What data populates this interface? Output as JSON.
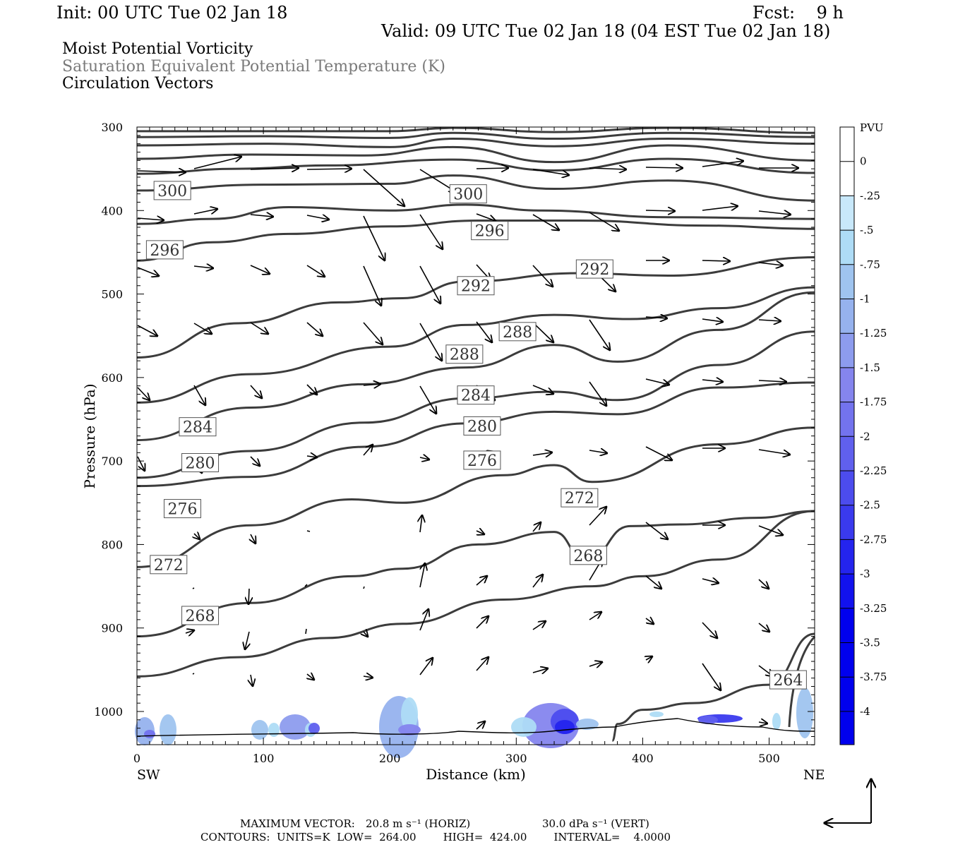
{
  "header": {
    "init": "Init: 00 UTC Tue 02 Jan 18",
    "fcst": "Fcst:    9 h",
    "valid": "Valid: 09 UTC Tue 02 Jan 18 (04 EST Tue 02 Jan 18)"
  },
  "titles": {
    "line1": "Moist Potential Vorticity",
    "line2": "Saturation Equivalent Potential Temperature (K)",
    "line3": "Circulation Vectors"
  },
  "footer": {
    "max_label": "MAXIMUM VECTOR:",
    "max_h": "20.8 m s⁻¹ (HORIZ)",
    "max_v": "30.0 dPa s⁻¹ (VERT)",
    "contours": "CONTOURS:  UNITS=K  LOW=  264.00        HIGH=  424.00        INTERVAL=    4.0000"
  },
  "colors": {
    "contour": "#3c3c3c",
    "vector": "#000000",
    "pv_fill": [
      "#c8e8fa",
      "#aedcf6",
      "#9fc4ef",
      "#96b2ee",
      "#8d9cee",
      "#8585ee",
      "#7373ee",
      "#6060ee",
      "#4c4cee",
      "#3a3aee",
      "#2424ee",
      "#1212ee",
      "#0000ee"
    ]
  },
  "chart_data": {
    "type": "cross-section",
    "xlabel": "Distance (km)",
    "ylabel": "Pressure (hPa)",
    "xlim": [
      0,
      536
    ],
    "ylim": [
      300,
      1040
    ],
    "x_ticks": [
      0,
      100,
      200,
      300,
      400,
      500
    ],
    "y_ticks": [
      300,
      400,
      500,
      600,
      700,
      800,
      900,
      1000
    ],
    "end_labels": {
      "left": "SW",
      "right": "NE"
    },
    "colorbar": {
      "unit": "PVU",
      "levels": [
        "0",
        "-.25",
        "-.5",
        "-.75",
        "-1",
        "-1.25",
        "-1.5",
        "-1.75",
        "-2",
        "-2.25",
        "-2.5",
        "-2.75",
        "-3",
        "-3.25",
        "-3.5",
        "-3.75",
        "-4"
      ]
    },
    "contour_labels": [
      {
        "text": "300",
        "x": 28,
        "p": 376
      },
      {
        "text": "300",
        "x": 262,
        "p": 380
      },
      {
        "text": "296",
        "x": 22,
        "p": 447
      },
      {
        "text": "296",
        "x": 279,
        "p": 424
      },
      {
        "text": "292",
        "x": 268,
        "p": 490
      },
      {
        "text": "292",
        "x": 362,
        "p": 470
      },
      {
        "text": "288",
        "x": 301,
        "p": 545
      },
      {
        "text": "288",
        "x": 259,
        "p": 572
      },
      {
        "text": "284",
        "x": 268,
        "p": 621
      },
      {
        "text": "284",
        "x": 48,
        "p": 659
      },
      {
        "text": "280",
        "x": 273,
        "p": 658
      },
      {
        "text": "280",
        "x": 50,
        "p": 702
      },
      {
        "text": "276",
        "x": 273,
        "p": 699
      },
      {
        "text": "276",
        "x": 36,
        "p": 757
      },
      {
        "text": "272",
        "x": 350,
        "p": 744
      },
      {
        "text": "272",
        "x": 25,
        "p": 824
      },
      {
        "text": "268",
        "x": 357,
        "p": 813
      },
      {
        "text": "268",
        "x": 50,
        "p": 885
      },
      {
        "text": "264",
        "x": 515,
        "p": 962
      }
    ]
  }
}
